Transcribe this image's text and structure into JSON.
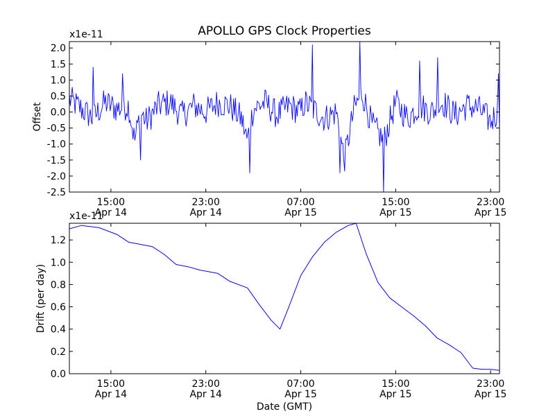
{
  "figure": {
    "title": "APOLLO GPS Clock Properties",
    "xlabel": "Date (GMT)"
  },
  "chart_data": [
    {
      "type": "line",
      "title": "APOLLO GPS Clock Properties",
      "ylabel": "Offset",
      "offset_text": "x1e-11",
      "ylim": [
        -2.5,
        2.2
      ],
      "xlim": [
        "Apr 14 11:30",
        "Apr 15 23:45"
      ],
      "color": "#0000ff",
      "yticks": [
        "-2.5",
        "-2.0",
        "-1.5",
        "-1.0",
        "-0.5",
        "0.0",
        "0.5",
        "1.0",
        "1.5",
        "2.0"
      ],
      "xticks": [
        {
          "time": "15:00",
          "date": "Apr 14"
        },
        {
          "time": "23:00",
          "date": "Apr 14"
        },
        {
          "time": "07:00",
          "date": "Apr 15"
        },
        {
          "time": "15:00",
          "date": "Apr 15"
        },
        {
          "time": "23:00",
          "date": "Apr 15"
        }
      ],
      "x": [
        "Apr 14 11:30",
        "Apr 14 12:30",
        "Apr 14 13:30",
        "Apr 14 14:30",
        "Apr 14 15:30",
        "Apr 14 16:30",
        "Apr 14 17:00",
        "Apr 14 17:30",
        "Apr 14 18:00",
        "Apr 14 19:00",
        "Apr 14 20:00",
        "Apr 14 21:00",
        "Apr 14 22:00",
        "Apr 14 23:00",
        "Apr 15 00:00",
        "Apr 15 01:00",
        "Apr 15 02:00",
        "Apr 15 02:30",
        "Apr 15 03:00",
        "Apr 15 04:00",
        "Apr 15 05:00",
        "Apr 15 06:00",
        "Apr 15 07:00",
        "Apr 15 07:20",
        "Apr 15 08:00",
        "Apr 15 09:00",
        "Apr 15 10:00",
        "Apr 15 10:40",
        "Apr 15 11:30",
        "Apr 15 12:10",
        "Apr 15 13:00",
        "Apr 15 14:00",
        "Apr 15 15:00",
        "Apr 15 16:00",
        "Apr 15 17:00",
        "Apr 15 18:00",
        "Apr 15 19:00",
        "Apr 15 20:00",
        "Apr 15 21:00",
        "Apr 15 22:00",
        "Apr 15 23:00",
        "Apr 15 23:45"
      ],
      "values": [
        0.4,
        0.1,
        -0.2,
        0.3,
        0.1,
        0.2,
        -0.9,
        0.0,
        -0.3,
        0.2,
        0.3,
        -0.1,
        0.2,
        0.0,
        0.3,
        0.2,
        -0.2,
        -0.9,
        0.1,
        0.3,
        -0.1,
        0.2,
        0.0,
        0.3,
        0.1,
        -0.2,
        0.0,
        -1.5,
        0.1,
        0.6,
        -0.4,
        -0.9,
        0.3,
        -0.2,
        0.2,
        0.0,
        0.3,
        -0.1,
        0.2,
        0.1,
        -0.3,
        0.1
      ],
      "spikes": [
        {
          "x": "Apr 14 13:30",
          "value": 1.4
        },
        {
          "x": "Apr 14 16:00",
          "value": 1.2
        },
        {
          "x": "Apr 14 17:30",
          "value": -1.5
        },
        {
          "x": "Apr 15 02:40",
          "value": -1.9
        },
        {
          "x": "Apr 15 08:00",
          "value": 2.1
        },
        {
          "x": "Apr 15 10:20",
          "value": -1.9
        },
        {
          "x": "Apr 15 12:00",
          "value": 2.2
        },
        {
          "x": "Apr 15 14:00",
          "value": -2.5
        },
        {
          "x": "Apr 15 17:00",
          "value": 1.6
        },
        {
          "x": "Apr 15 18:30",
          "value": 1.7
        },
        {
          "x": "Apr 15 23:40",
          "value": 1.2
        }
      ]
    },
    {
      "type": "line",
      "ylabel": "Drift (per day)",
      "offset_text": "x1e-11",
      "ylim": [
        0.0,
        1.35
      ],
      "xlim": [
        "Apr 14 11:30",
        "Apr 15 23:45"
      ],
      "color": "#0000ff",
      "yticks": [
        "0.0",
        "0.2",
        "0.4",
        "0.6",
        "0.8",
        "1.0",
        "1.2"
      ],
      "xticks": [
        {
          "time": "15:00",
          "date": "Apr 14"
        },
        {
          "time": "23:00",
          "date": "Apr 14"
        },
        {
          "time": "07:00",
          "date": "Apr 15"
        },
        {
          "time": "15:00",
          "date": "Apr 15"
        },
        {
          "time": "23:00",
          "date": "Apr 15"
        }
      ],
      "x": [
        "Apr 14 11:30",
        "Apr 14 12:30",
        "Apr 14 14:00",
        "Apr 14 15:30",
        "Apr 14 16:30",
        "Apr 14 17:30",
        "Apr 14 18:30",
        "Apr 14 19:30",
        "Apr 14 20:30",
        "Apr 14 21:30",
        "Apr 14 22:30",
        "Apr 15 00:00",
        "Apr 15 01:00",
        "Apr 15 02:30",
        "Apr 15 03:30",
        "Apr 15 04:30",
        "Apr 15 05:15",
        "Apr 15 06:00",
        "Apr 15 07:00",
        "Apr 15 08:00",
        "Apr 15 09:00",
        "Apr 15 10:00",
        "Apr 15 11:00",
        "Apr 15 11:40",
        "Apr 15 12:30",
        "Apr 15 13:30",
        "Apr 15 14:30",
        "Apr 15 15:30",
        "Apr 15 16:30",
        "Apr 15 17:30",
        "Apr 15 18:30",
        "Apr 15 19:30",
        "Apr 15 20:30",
        "Apr 15 21:30",
        "Apr 15 22:15",
        "Apr 15 23:00",
        "Apr 15 23:45"
      ],
      "values": [
        1.3,
        1.33,
        1.31,
        1.25,
        1.18,
        1.16,
        1.14,
        1.07,
        0.98,
        0.96,
        0.93,
        0.9,
        0.83,
        0.77,
        0.62,
        0.48,
        0.4,
        0.6,
        0.88,
        1.05,
        1.18,
        1.27,
        1.33,
        1.35,
        1.08,
        0.82,
        0.68,
        0.6,
        0.52,
        0.43,
        0.32,
        0.26,
        0.19,
        0.05,
        0.04,
        0.04,
        0.03
      ]
    }
  ]
}
